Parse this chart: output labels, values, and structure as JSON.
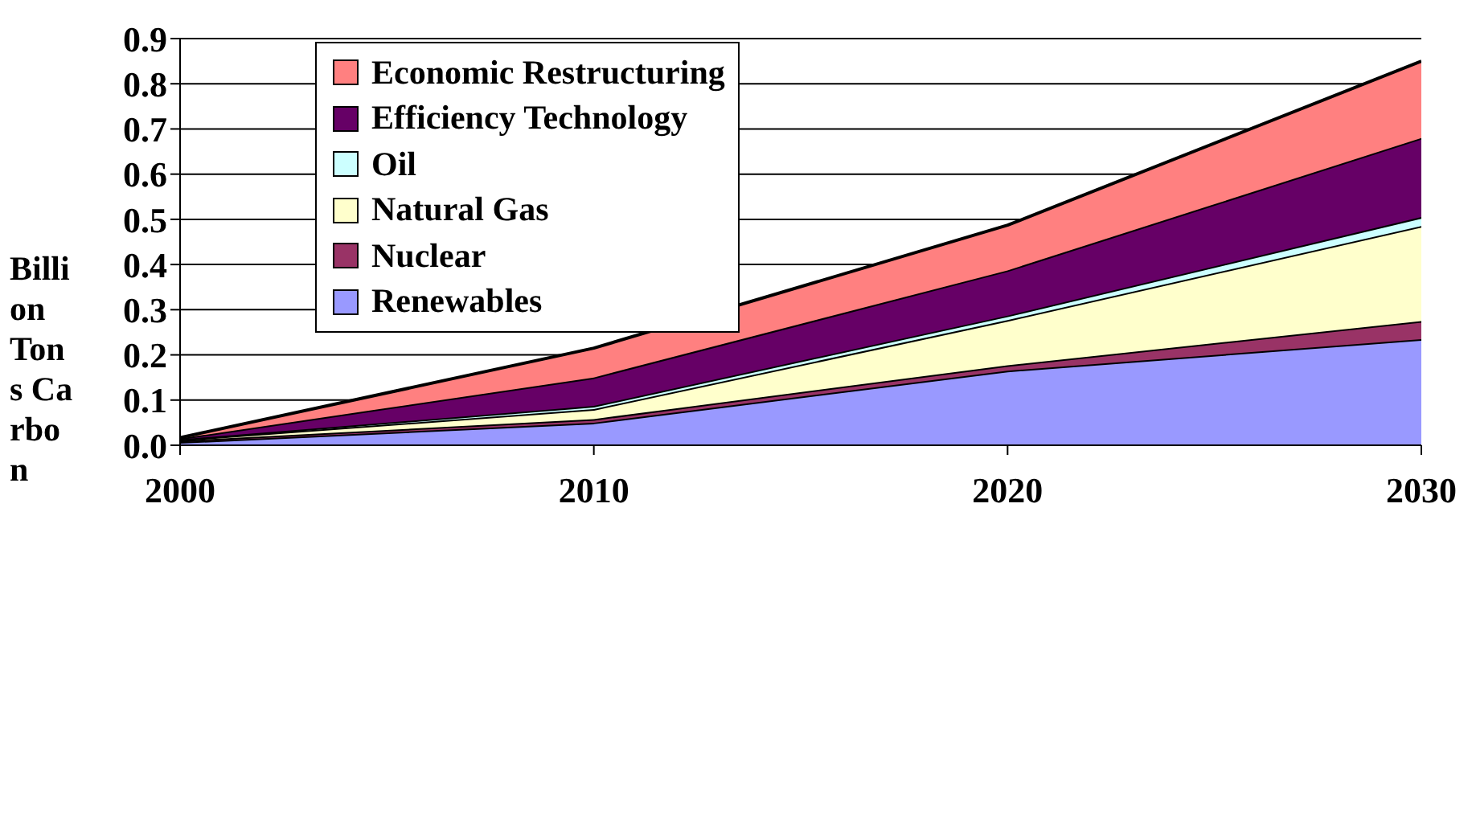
{
  "chart_data": {
    "type": "area",
    "stacked": true,
    "ylabel": "Billion Tons Carbon",
    "x": [
      2000,
      2010,
      2020,
      2030
    ],
    "xlim": [
      2000,
      2030
    ],
    "xticks": [
      2000,
      2010,
      2020,
      2030
    ],
    "ylim": [
      0,
      0.9
    ],
    "yticks": [
      {
        "value": 0,
        "label": "0.0"
      },
      0.1,
      0.2,
      0.3,
      0.4,
      0.5,
      0.6,
      0.7,
      0.8,
      0.9
    ],
    "grid": "y",
    "legend": "top left",
    "series": [
      {
        "name": "Renewables",
        "color": "#9999ff",
        "values": [
          0.007,
          0.05,
          0.165,
          0.235
        ]
      },
      {
        "name": "Nuclear",
        "color": "#993366",
        "values": [
          0.003,
          0.008,
          0.012,
          0.04
        ]
      },
      {
        "name": "Natural Gas",
        "color": "#ffffcc",
        "values": [
          0.002,
          0.022,
          0.1,
          0.21
        ]
      },
      {
        "name": "Oil",
        "color": "#ccffff",
        "values": [
          0.001,
          0.007,
          0.01,
          0.02
        ]
      },
      {
        "name": "Efficiency Technology",
        "color": "#660066",
        "values": [
          0.002,
          0.063,
          0.1,
          0.175
        ]
      },
      {
        "name": "Economic Restructuring",
        "color": "#ff8080",
        "values": [
          0.002,
          0.065,
          0.1,
          0.17
        ]
      }
    ]
  }
}
